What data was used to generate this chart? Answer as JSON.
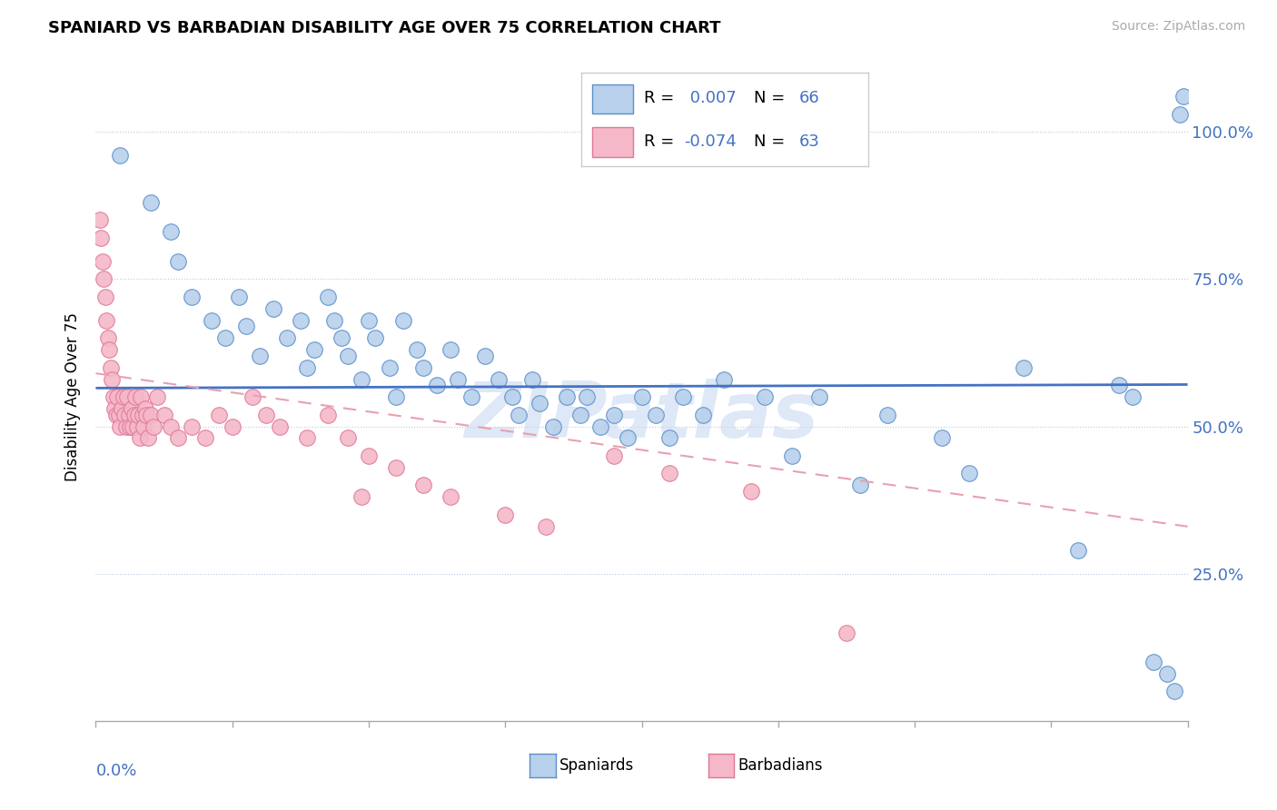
{
  "title": "SPANIARD VS BARBADIAN DISABILITY AGE OVER 75 CORRELATION CHART",
  "source": "Source: ZipAtlas.com",
  "ylabel": "Disability Age Over 75",
  "xmin": 0.0,
  "xmax": 0.8,
  "ymin": 0.0,
  "ymax": 1.1,
  "ytick_values": [
    0.25,
    0.5,
    0.75,
    1.0
  ],
  "ytick_labels": [
    "25.0%",
    "50.0%",
    "75.0%",
    "100.0%"
  ],
  "spaniards_R": 0.007,
  "spaniards_N": 66,
  "barbadians_R": -0.074,
  "barbadians_N": 63,
  "spaniard_fill": "#b8d0eb",
  "spaniard_edge": "#5b8fc9",
  "barbadian_fill": "#f4b8c8",
  "barbadian_edge": "#e07898",
  "spaniard_line_color": "#4472c4",
  "barbadian_line_color": "#e8a0b0",
  "watermark": "ZIPatlas",
  "watermark_color": "#c8daf0",
  "spaniards_x": [
    0.018,
    0.04,
    0.055,
    0.06,
    0.07,
    0.085,
    0.095,
    0.105,
    0.11,
    0.12,
    0.13,
    0.14,
    0.15,
    0.155,
    0.16,
    0.17,
    0.175,
    0.18,
    0.185,
    0.195,
    0.2,
    0.205,
    0.215,
    0.22,
    0.225,
    0.235,
    0.24,
    0.25,
    0.26,
    0.265,
    0.275,
    0.285,
    0.295,
    0.305,
    0.31,
    0.32,
    0.325,
    0.335,
    0.345,
    0.355,
    0.36,
    0.37,
    0.38,
    0.39,
    0.4,
    0.41,
    0.42,
    0.43,
    0.445,
    0.46,
    0.49,
    0.51,
    0.53,
    0.56,
    0.58,
    0.62,
    0.64,
    0.68,
    0.72,
    0.75,
    0.76,
    0.775,
    0.785,
    0.79,
    0.794,
    0.797
  ],
  "spaniards_y": [
    0.96,
    0.88,
    0.83,
    0.78,
    0.72,
    0.68,
    0.65,
    0.72,
    0.67,
    0.62,
    0.7,
    0.65,
    0.68,
    0.6,
    0.63,
    0.72,
    0.68,
    0.65,
    0.62,
    0.58,
    0.68,
    0.65,
    0.6,
    0.55,
    0.68,
    0.63,
    0.6,
    0.57,
    0.63,
    0.58,
    0.55,
    0.62,
    0.58,
    0.55,
    0.52,
    0.58,
    0.54,
    0.5,
    0.55,
    0.52,
    0.55,
    0.5,
    0.52,
    0.48,
    0.55,
    0.52,
    0.48,
    0.55,
    0.52,
    0.58,
    0.55,
    0.45,
    0.55,
    0.4,
    0.52,
    0.48,
    0.42,
    0.6,
    0.29,
    0.57,
    0.55,
    0.1,
    0.08,
    0.05,
    1.03,
    1.06
  ],
  "barbadians_x": [
    0.003,
    0.004,
    0.005,
    0.006,
    0.007,
    0.008,
    0.009,
    0.01,
    0.011,
    0.012,
    0.013,
    0.014,
    0.015,
    0.016,
    0.017,
    0.018,
    0.019,
    0.02,
    0.021,
    0.022,
    0.023,
    0.024,
    0.025,
    0.026,
    0.027,
    0.028,
    0.029,
    0.03,
    0.031,
    0.032,
    0.033,
    0.034,
    0.035,
    0.036,
    0.037,
    0.038,
    0.04,
    0.042,
    0.045,
    0.05,
    0.055,
    0.06,
    0.07,
    0.08,
    0.09,
    0.1,
    0.115,
    0.125,
    0.135,
    0.155,
    0.17,
    0.185,
    0.2,
    0.22,
    0.24,
    0.26,
    0.3,
    0.33,
    0.38,
    0.42,
    0.48,
    0.55,
    0.195
  ],
  "barbadians_y": [
    0.85,
    0.82,
    0.78,
    0.75,
    0.72,
    0.68,
    0.65,
    0.63,
    0.6,
    0.58,
    0.55,
    0.53,
    0.52,
    0.55,
    0.52,
    0.5,
    0.53,
    0.55,
    0.52,
    0.5,
    0.55,
    0.52,
    0.5,
    0.53,
    0.5,
    0.52,
    0.55,
    0.5,
    0.52,
    0.48,
    0.55,
    0.52,
    0.5,
    0.53,
    0.52,
    0.48,
    0.52,
    0.5,
    0.55,
    0.52,
    0.5,
    0.48,
    0.5,
    0.48,
    0.52,
    0.5,
    0.55,
    0.52,
    0.5,
    0.48,
    0.52,
    0.48,
    0.45,
    0.43,
    0.4,
    0.38,
    0.35,
    0.33,
    0.45,
    0.42,
    0.39,
    0.15,
    0.38
  ],
  "spaniard_trend_y0": 0.565,
  "spaniard_trend_y1": 0.571,
  "barbadian_trend_y0": 0.59,
  "barbadian_trend_y1": 0.33
}
